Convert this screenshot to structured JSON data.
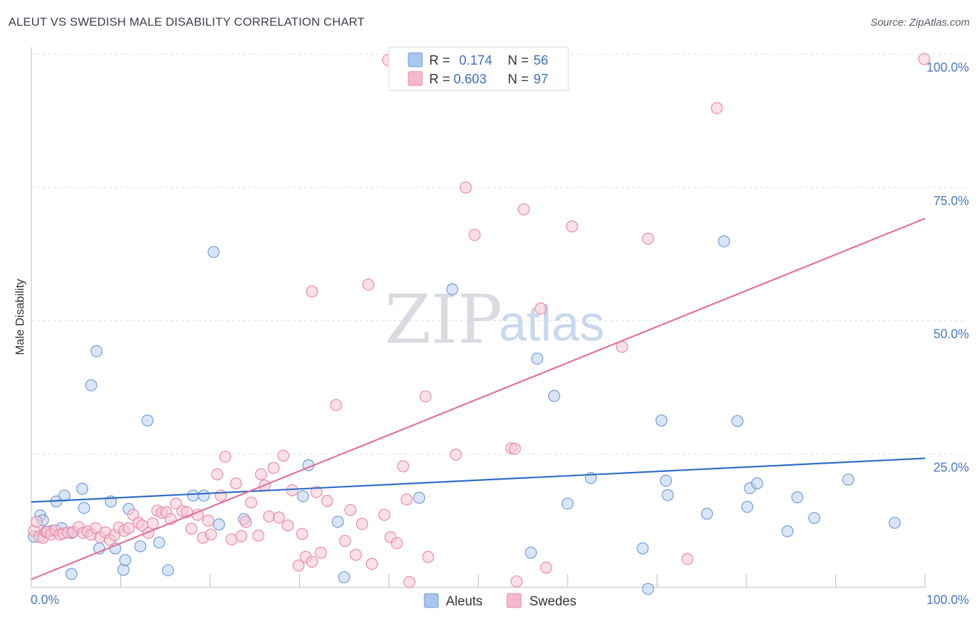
{
  "title": "ALEUT VS SWEDISH MALE DISABILITY CORRELATION CHART",
  "source": "Source: ZipAtlas.com",
  "watermark": {
    "zip": "ZIP",
    "atlas": "atlas"
  },
  "legend": {
    "rows": [
      {
        "r_label": "R =",
        "r_value": "0.174",
        "n_label": "N =",
        "n_value": "56",
        "color": "#a9c6ee",
        "stroke": "#6f9bd8"
      },
      {
        "r_label": "R =",
        "r_value": "0.603",
        "n_label": "N =",
        "n_value": "97",
        "color": "#f6b8cb",
        "stroke": "#e98aa8"
      }
    ]
  },
  "chart_data": {
    "type": "scatter",
    "title": "ALEUT VS SWEDISH MALE DISABILITY CORRELATION CHART",
    "xlabel": "",
    "ylabel": "Male Disability",
    "xlim": [
      0,
      100
    ],
    "ylim": [
      0,
      100
    ],
    "x_tick_labels": [
      "0.0%",
      "100.0%"
    ],
    "y_tick_labels": [
      "100.0%",
      "75.0%",
      "50.0%",
      "25.0%"
    ],
    "y_ticks": [
      100,
      75,
      50,
      25
    ],
    "grid": true,
    "legend_position": "bottom-center",
    "series": [
      {
        "name": "Aleuts",
        "color": "#6f9bd8",
        "fill": "#b9d1f1",
        "trend": {
          "x": [
            0,
            100
          ],
          "y": [
            16.0,
            24.2
          ]
        },
        "points": [
          [
            0.3,
            9.5
          ],
          [
            1.0,
            13.5
          ],
          [
            1.3,
            12.6
          ],
          [
            1.7,
            10.4
          ],
          [
            2.3,
            10.6
          ],
          [
            2.8,
            16.1
          ],
          [
            3.4,
            11.1
          ],
          [
            3.7,
            17.2
          ],
          [
            4.5,
            10.2
          ],
          [
            4.5,
            2.5
          ],
          [
            5.7,
            18.5
          ],
          [
            5.9,
            14.9
          ],
          [
            6.7,
            37.9
          ],
          [
            7.3,
            44.3
          ],
          [
            7.6,
            7.3
          ],
          [
            8.9,
            16.1
          ],
          [
            9.4,
            7.3
          ],
          [
            10.3,
            3.3
          ],
          [
            10.5,
            5.1
          ],
          [
            10.9,
            14.7
          ],
          [
            12.2,
            7.7
          ],
          [
            13.0,
            31.3
          ],
          [
            14.3,
            8.4
          ],
          [
            15.3,
            3.2
          ],
          [
            18.1,
            17.2
          ],
          [
            19.3,
            17.2
          ],
          [
            20.4,
            62.9
          ],
          [
            21.0,
            11.8
          ],
          [
            23.8,
            12.8
          ],
          [
            30.4,
            17.1
          ],
          [
            31.0,
            22.9
          ],
          [
            34.3,
            12.3
          ],
          [
            35.0,
            1.9
          ],
          [
            43.4,
            16.8
          ],
          [
            47.1,
            55.9
          ],
          [
            55.9,
            6.5
          ],
          [
            56.6,
            42.9
          ],
          [
            58.5,
            35.9
          ],
          [
            60.0,
            15.7
          ],
          [
            62.6,
            20.5
          ],
          [
            68.4,
            7.3
          ],
          [
            69.0,
            -0.3
          ],
          [
            70.5,
            31.3
          ],
          [
            71.0,
            20.0
          ],
          [
            71.2,
            17.3
          ],
          [
            75.6,
            13.8
          ],
          [
            77.5,
            64.9
          ],
          [
            79.0,
            31.2
          ],
          [
            80.1,
            15.1
          ],
          [
            80.4,
            18.6
          ],
          [
            81.2,
            19.5
          ],
          [
            84.6,
            10.5
          ],
          [
            85.7,
            16.9
          ],
          [
            87.6,
            13.0
          ],
          [
            91.4,
            20.2
          ],
          [
            96.6,
            12.1
          ]
        ]
      },
      {
        "name": "Swedes",
        "color": "#e98aa8",
        "fill": "#f8c6d6",
        "trend": {
          "x": [
            0,
            100
          ],
          "y": [
            1.5,
            69.2
          ]
        },
        "points": [
          [
            0.3,
            10.6
          ],
          [
            0.6,
            12.3
          ],
          [
            0.9,
            9.5
          ],
          [
            1.3,
            9.3
          ],
          [
            1.6,
            10.4
          ],
          [
            1.8,
            10.4
          ],
          [
            2.2,
            9.9
          ],
          [
            2.7,
            10.7
          ],
          [
            3.2,
            9.9
          ],
          [
            3.6,
            10.1
          ],
          [
            4.1,
            10.3
          ],
          [
            4.7,
            10.4
          ],
          [
            5.3,
            11.3
          ],
          [
            5.8,
            10.2
          ],
          [
            6.3,
            10.5
          ],
          [
            6.7,
            9.9
          ],
          [
            7.2,
            11.1
          ],
          [
            7.7,
            9.4
          ],
          [
            8.3,
            10.3
          ],
          [
            8.8,
            8.9
          ],
          [
            9.3,
            9.8
          ],
          [
            9.8,
            11.2
          ],
          [
            10.4,
            10.6
          ],
          [
            10.9,
            11.1
          ],
          [
            11.4,
            13.6
          ],
          [
            12.0,
            12.1
          ],
          [
            12.4,
            11.6
          ],
          [
            13.1,
            10.2
          ],
          [
            13.6,
            12.0
          ],
          [
            14.1,
            14.4
          ],
          [
            14.6,
            14.0
          ],
          [
            15.1,
            14.1
          ],
          [
            15.6,
            12.8
          ],
          [
            16.2,
            15.7
          ],
          [
            16.9,
            14.3
          ],
          [
            17.4,
            14.1
          ],
          [
            17.9,
            11.0
          ],
          [
            18.6,
            13.6
          ],
          [
            19.2,
            9.3
          ],
          [
            19.8,
            12.5
          ],
          [
            20.1,
            9.9
          ],
          [
            20.8,
            21.2
          ],
          [
            21.2,
            17.2
          ],
          [
            21.7,
            24.5
          ],
          [
            22.4,
            9.0
          ],
          [
            22.9,
            19.5
          ],
          [
            23.5,
            9.6
          ],
          [
            24.0,
            12.3
          ],
          [
            24.6,
            15.9
          ],
          [
            25.4,
            9.7
          ],
          [
            26.1,
            19.1
          ],
          [
            26.6,
            13.3
          ],
          [
            27.1,
            22.4
          ],
          [
            27.7,
            13.1
          ],
          [
            28.2,
            24.7
          ],
          [
            28.7,
            11.6
          ],
          [
            29.2,
            18.2
          ],
          [
            29.9,
            4.1
          ],
          [
            30.3,
            10.0
          ],
          [
            30.7,
            5.7
          ],
          [
            31.4,
            4.8
          ],
          [
            31.4,
            55.5
          ],
          [
            31.9,
            17.9
          ],
          [
            32.4,
            6.5
          ],
          [
            33.1,
            16.2
          ],
          [
            34.1,
            34.2
          ],
          [
            35.1,
            8.7
          ],
          [
            35.7,
            14.5
          ],
          [
            36.3,
            6.1
          ],
          [
            37.0,
            11.9
          ],
          [
            37.7,
            56.8
          ],
          [
            38.1,
            4.4
          ],
          [
            39.5,
            13.6
          ],
          [
            40.2,
            9.4
          ],
          [
            40.9,
            8.3
          ],
          [
            41.6,
            22.7
          ],
          [
            42.0,
            16.5
          ],
          [
            42.3,
            1.0
          ],
          [
            44.1,
            35.8
          ],
          [
            44.4,
            5.7
          ],
          [
            47.5,
            24.9
          ],
          [
            48.6,
            75.0
          ],
          [
            49.6,
            66.1
          ],
          [
            53.7,
            26.1
          ],
          [
            54.1,
            26.0
          ],
          [
            54.3,
            1.1
          ],
          [
            55.1,
            70.9
          ],
          [
            57.0,
            52.3
          ],
          [
            57.6,
            3.7
          ],
          [
            60.5,
            67.7
          ],
          [
            66.1,
            45.1
          ],
          [
            69.0,
            65.4
          ],
          [
            73.4,
            5.3
          ],
          [
            76.7,
            89.9
          ],
          [
            99.9,
            99.1
          ],
          [
            39.9,
            98.9
          ],
          [
            25.7,
            21.2
          ]
        ]
      }
    ]
  }
}
